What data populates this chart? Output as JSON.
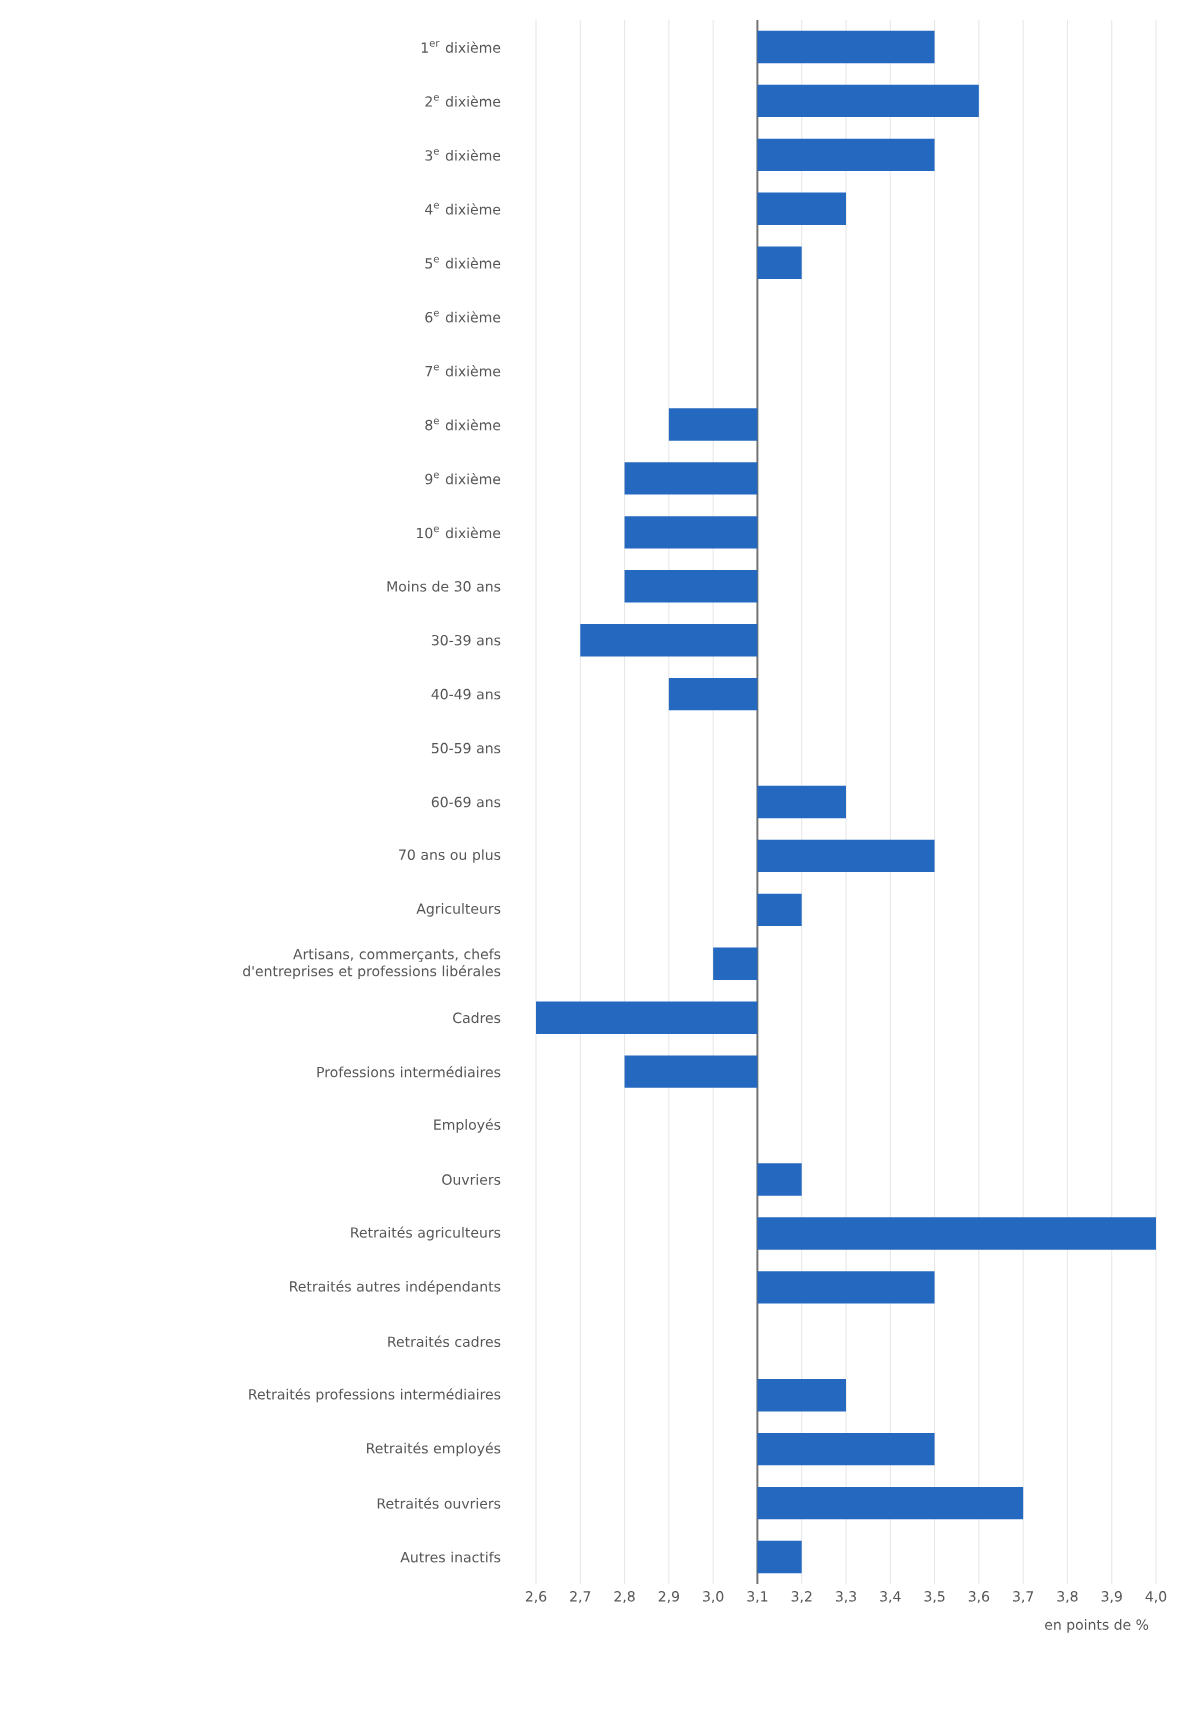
{
  "chart_data": {
    "type": "bar",
    "orientation": "horizontal",
    "xlabel": "en points de %",
    "categories": [
      "1$^{er}$ dixième",
      "2$^{e}$ dixième",
      "3$^{e}$ dixième",
      "4$^{e}$ dixième",
      "5$^{e}$ dixième",
      "6$^{e}$ dixième",
      "7$^{e}$ dixième",
      "8$^{e}$ dixième",
      "9$^{e}$ dixième",
      "10$^{e}$ dixième",
      "Moins de 30 ans",
      "30-39 ans",
      "40-49 ans",
      "50-59 ans",
      "60-69 ans",
      "70 ans ou plus",
      "Agriculteurs",
      "Artisans, commerçants, chefs d'entreprises et professions libérales",
      "Cadres",
      "Professions intermédiaires",
      "Employés",
      "Ouvriers",
      "Retraités agriculteurs",
      "Retraités autres indépendants",
      "Retraités cadres",
      "Retraités professions intermédiaires",
      "Retraités employés",
      "Retraités ouvriers",
      "Autres inactifs"
    ],
    "values": [
      0.4,
      0.5,
      0.4,
      0.2,
      0.1,
      null,
      null,
      -0.2,
      -0.3,
      -0.3,
      -0.3,
      -0.4,
      -0.2,
      null,
      0.2,
      0.4,
      0.1,
      -0.1,
      -0.5,
      -0.3,
      null,
      0.1,
      0.9,
      0.4,
      null,
      0.2,
      0.4,
      0.6,
      0.1
    ],
    "base": [
      3.1,
      3.1,
      3.1,
      3.1,
      3.1,
      null,
      null,
      3.1,
      3.1,
      3.1,
      3.1,
      3.1,
      3.1,
      null,
      3.1,
      3.1,
      3.1,
      3.1,
      3.1,
      3.1,
      null,
      3.1,
      3.1,
      3.1,
      null,
      3.1,
      3.1,
      3.1,
      3.1
    ],
    "color": "#2468bf",
    "xlim": [
      2.6,
      4.0
    ],
    "xticks": [
      {
        "value": 2.6,
        "label": "2,6"
      },
      {
        "value": 2.7,
        "label": "2,7"
      },
      {
        "value": 2.8,
        "label": "2,8"
      },
      {
        "value": 2.9,
        "label": "2,9"
      },
      {
        "value": 3.0,
        "label": "3,0"
      },
      {
        "value": 3.1,
        "label": "3,1"
      },
      {
        "value": 3.2,
        "label": "3,2"
      },
      {
        "value": 3.3,
        "label": "3,3"
      },
      {
        "value": 3.4,
        "label": "3,4"
      },
      {
        "value": 3.5,
        "label": "3,5"
      },
      {
        "value": 3.6,
        "label": "3,6"
      },
      {
        "value": 3.7,
        "label": "3,7"
      },
      {
        "value": 3.8,
        "label": "3,8"
      },
      {
        "value": 3.9,
        "label": "3,9"
      },
      {
        "value": 4.0,
        "label": "4,0"
      }
    ],
    "grid": "x",
    "ref_lines": [
      {
        "axis": "x",
        "value": 3.1,
        "color": "#707070"
      }
    ]
  }
}
